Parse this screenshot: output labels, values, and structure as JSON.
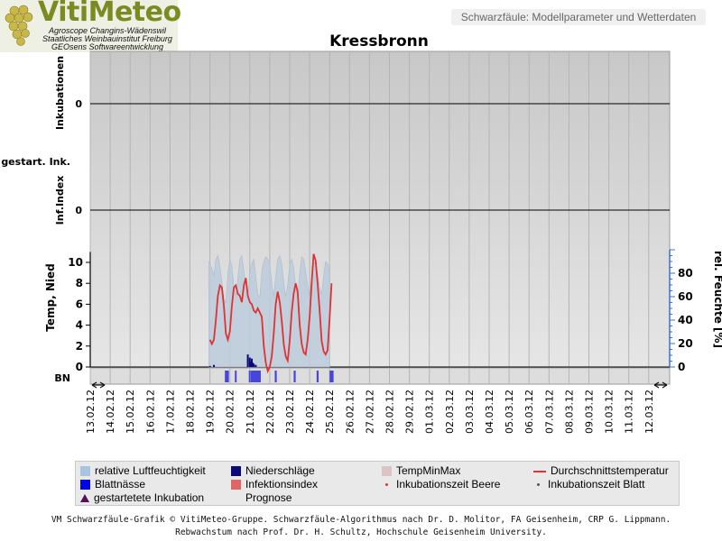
{
  "header": {
    "logo_title": "VitiMeteo",
    "logo_lines": [
      "Agroscope Changins-Wädenswil",
      "Staatliches Weinbauinstitut Freiburg",
      "GEOsens Softwareentwicklung"
    ],
    "subtitle": "Schwarzfäule: Modellparameter und Wetterdaten",
    "station": "Kressbronn"
  },
  "panels": {
    "inkubationen_label": "Inkubationen",
    "inkubationen_tick": "0",
    "gestart_label": "gestart. Ink.",
    "infindex_label": "Inf.Index",
    "infindex_tick": "0",
    "temp_label": "Temp, Nied",
    "humidity_label": "rel. Feuchte [%]",
    "bn_label": "BN"
  },
  "chart_data": {
    "type": "line",
    "x_dates": [
      "13.02.12",
      "14.02.12",
      "15.02.12",
      "16.02.12",
      "17.02.12",
      "18.02.12",
      "19.02.12",
      "20.02.12",
      "21.02.12",
      "22.02.12",
      "23.02.12",
      "24.02.12",
      "25.02.12",
      "26.02.12",
      "27.02.12",
      "28.02.12",
      "29.02.12",
      "01.03.12",
      "02.03.12",
      "03.03.12",
      "04.03.12",
      "05.03.12",
      "06.03.12",
      "07.03.12",
      "08.03.12",
      "09.03.12",
      "10.03.12",
      "11.03.12",
      "12.03.12"
    ],
    "temp_axis": {
      "ticks": [
        0,
        2,
        4,
        6,
        8,
        10
      ],
      "range": [
        0,
        11
      ]
    },
    "humidity_axis": {
      "ticks": [
        0,
        20,
        40,
        60,
        80
      ],
      "range": [
        0,
        100
      ]
    },
    "series": [
      {
        "name": "Durchschnittstemperatur",
        "color": "#dd3333",
        "x": [
          6.0,
          6.1,
          6.2,
          6.3,
          6.4,
          6.5,
          6.6,
          6.7,
          6.8,
          6.9,
          7.0,
          7.1,
          7.2,
          7.3,
          7.4,
          7.5,
          7.6,
          7.7,
          7.8,
          7.9,
          8.0,
          8.1,
          8.2,
          8.3,
          8.4,
          8.5,
          8.6,
          8.7,
          8.8,
          8.9,
          9.0,
          9.1,
          9.2,
          9.3,
          9.4,
          9.5,
          9.6,
          9.7,
          9.8,
          9.9,
          10.0,
          10.1,
          10.2,
          10.3,
          10.4,
          10.5,
          10.6,
          10.7,
          10.8,
          10.9,
          11.0,
          11.1,
          11.2,
          11.3,
          11.4,
          11.5,
          11.6,
          11.7,
          11.8,
          11.9,
          12.0,
          12.1
        ],
        "values": [
          2.6,
          2.2,
          2.6,
          4.5,
          6.8,
          7.8,
          7.6,
          5.8,
          3.2,
          2.6,
          3.4,
          5.8,
          7.6,
          7.8,
          7.0,
          6.8,
          6.2,
          7.8,
          8.5,
          6.8,
          6.2,
          6.0,
          5.4,
          5.2,
          5.6,
          5.2,
          4.8,
          2.0,
          0.4,
          -0.4,
          0.0,
          1.0,
          3.2,
          6.0,
          7.2,
          6.2,
          4.4,
          2.2,
          1.0,
          0.6,
          2.5,
          5.2,
          7.0,
          8.0,
          7.2,
          4.0,
          2.2,
          1.4,
          1.2,
          2.6,
          4.8,
          8.0,
          10.8,
          10.2,
          8.0,
          5.5,
          2.5,
          1.5,
          1.2,
          1.6,
          4.6,
          8.0
        ]
      },
      {
        "name": "relative Luftfeuchtigkeit",
        "color": "#b3c6d8",
        "x": [
          5.95,
          6.0,
          6.1,
          6.2,
          6.3,
          6.4,
          6.5,
          6.6,
          6.7,
          6.8,
          6.9,
          7.0,
          7.1,
          7.2,
          7.3,
          7.4,
          7.5,
          7.6,
          7.7,
          7.8,
          7.9,
          8.0,
          8.1,
          8.2,
          8.3,
          8.4,
          8.5,
          8.6,
          8.7,
          8.8,
          8.9,
          9.0,
          9.1,
          9.2,
          9.3,
          9.4,
          9.5,
          9.6,
          9.7,
          9.8,
          9.9,
          10.0,
          10.1,
          10.2,
          10.3,
          10.4,
          10.5,
          10.6,
          10.7,
          10.8,
          10.9,
          11.0,
          11.1,
          11.2,
          11.3,
          11.4,
          11.5,
          11.6,
          11.7,
          11.8,
          11.9,
          12.0
        ],
        "values": [
          90,
          88,
          84,
          78,
          92,
          95,
          86,
          72,
          58,
          55,
          80,
          92,
          86,
          70,
          60,
          76,
          92,
          95,
          82,
          70,
          60,
          80,
          88,
          92,
          78,
          62,
          60,
          82,
          90,
          94,
          92,
          88,
          72,
          60,
          78,
          92,
          95,
          88,
          72,
          60,
          70,
          88,
          92,
          85,
          70,
          60,
          80,
          94,
          92,
          82,
          70,
          60,
          76,
          88,
          90,
          80,
          68,
          62,
          78,
          90,
          88,
          80
        ]
      },
      {
        "name": "Niederschläge",
        "color": "#0a0a78",
        "x": [
          6.0,
          6.2,
          7.9,
          8.0,
          8.05,
          8.1,
          8.15,
          8.2,
          8.3
        ],
        "values": [
          0.1,
          0.2,
          1.2,
          0.9,
          0.5,
          0.8,
          0.4,
          0.3,
          0.2
        ]
      }
    ],
    "leaf_wetness_days": [
      [
        6.75,
        6.95
      ],
      [
        7.25,
        7.32
      ],
      [
        7.95,
        8.0
      ],
      [
        8.05,
        8.55
      ],
      [
        9.25,
        9.35
      ],
      [
        10.2,
        10.3
      ],
      [
        11.35,
        11.45
      ],
      [
        12.0,
        12.2
      ]
    ]
  },
  "legend": [
    {
      "label": "relative Luftfeuchtigkeit",
      "swatch": "box",
      "color": "#a8c4e0"
    },
    {
      "label": "Niederschläge",
      "swatch": "box",
      "color": "#0a0a78"
    },
    {
      "label": "TempMinMax",
      "swatch": "box",
      "color": "#dcc4c4"
    },
    {
      "label": "Durchschnittstemperatur",
      "swatch": "line",
      "color": "#dd3333"
    },
    {
      "label": "Blattnässe",
      "swatch": "box",
      "color": "#0000e6"
    },
    {
      "label": "Infektionsindex",
      "swatch": "box",
      "color": "#e06666"
    },
    {
      "label": "Inkubationszeit Beere",
      "swatch": "dot",
      "color": "#dd3333"
    },
    {
      "label": "Inkubationszeit Blatt",
      "swatch": "dot",
      "color": "#555555"
    },
    {
      "label": "gestartetete Inkubation",
      "swatch": "tri",
      "color": "#551155"
    },
    {
      "label": "Prognose",
      "swatch": "none",
      "color": ""
    }
  ],
  "footer": {
    "line1": "VM Schwarzfäule-Grafik © VitiMeteo-Gruppe. Schwarzfäule-Algorithmus nach Dr. D. Molitor, FA Geisenheim, CRP G. Lippmann.",
    "line2": "Rebwachstum nach Prof. Dr. H. Schultz, Hochschule Geisenheim University."
  }
}
